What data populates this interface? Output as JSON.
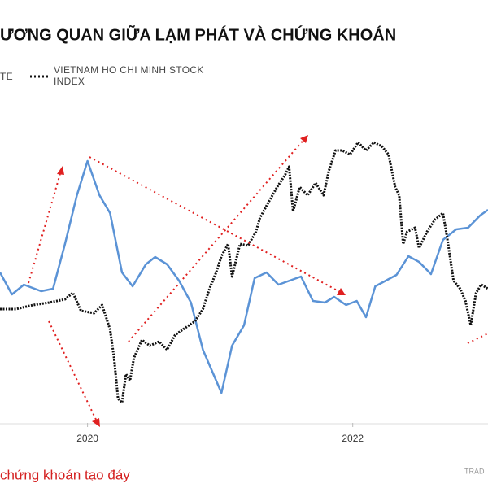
{
  "chart_data": {
    "type": "line",
    "title": "ƯƠNG QUAN GIỮA LẠM PHÁT VÀ CHỨNG KHOÁN",
    "annotations": [
      "chứng khoán tạo đáy",
      "TRAD"
    ],
    "xlim": [
      2019.34,
      2023.02
    ],
    "xticks": [
      2020,
      2022
    ],
    "ylim": [
      0,
      390
    ],
    "series": [
      {
        "name": "TE",
        "color": "#5b93d6",
        "style": "solid",
        "x": [
          2019.34,
          2019.43,
          2019.52,
          2019.65,
          2019.74,
          2019.83,
          2019.92,
          2020.0,
          2020.09,
          2020.17,
          2020.26,
          2020.34,
          2020.44,
          2020.51,
          2020.6,
          2020.69,
          2020.78,
          2020.87,
          2021.01,
          2021.09,
          2021.18,
          2021.26,
          2021.35,
          2021.44,
          2021.61,
          2021.7,
          2021.79,
          2021.86,
          2021.95,
          2022.03,
          2022.1,
          2022.17,
          2022.25,
          2022.33,
          2022.42,
          2022.5,
          2022.59,
          2022.68,
          2022.78,
          2022.87,
          2022.96,
          2023.02
        ],
        "values": [
          185,
          158,
          170,
          162,
          165,
          220,
          280,
          322,
          280,
          258,
          185,
          168,
          195,
          204,
          195,
          175,
          148,
          90,
          37,
          95,
          120,
          178,
          185,
          170,
          180,
          150,
          148,
          155,
          145,
          150,
          130,
          168,
          175,
          182,
          205,
          198,
          183,
          225,
          238,
          240,
          255,
          262
        ]
      },
      {
        "name": "VIETNAM HO CHI MINH STOCK INDEX",
        "color": "#111111",
        "style": "dotted",
        "x": [
          2019.34,
          2019.46,
          2019.59,
          2019.71,
          2019.83,
          2019.89,
          2019.95,
          2020.05,
          2020.11,
          2020.17,
          2020.2,
          2020.23,
          2020.26,
          2020.29,
          2020.32,
          2020.35,
          2020.41,
          2020.47,
          2020.54,
          2020.6,
          2020.66,
          2020.72,
          2020.81,
          2020.87,
          2020.92,
          2020.97,
          2021.01,
          2021.06,
          2021.09,
          2021.12,
          2021.15,
          2021.21,
          2021.27,
          2021.3,
          2021.36,
          2021.43,
          2021.49,
          2021.52,
          2021.55,
          2021.6,
          2021.66,
          2021.72,
          2021.78,
          2021.82,
          2021.87,
          2021.92,
          2021.98,
          2022.04,
          2022.1,
          2022.16,
          2022.22,
          2022.27,
          2022.32,
          2022.35,
          2022.38,
          2022.41,
          2022.47,
          2022.5,
          2022.56,
          2022.62,
          2022.68,
          2022.71,
          2022.76,
          2022.81,
          2022.85,
          2022.89,
          2022.93,
          2022.97,
          2023.02
        ],
        "values": [
          140,
          140,
          145,
          148,
          152,
          160,
          138,
          135,
          145,
          115,
          80,
          30,
          25,
          60,
          52,
          80,
          102,
          95,
          100,
          90,
          108,
          115,
          125,
          140,
          165,
          185,
          205,
          220,
          180,
          200,
          220,
          218,
          235,
          252,
          270,
          290,
          305,
          315,
          260,
          290,
          280,
          295,
          280,
          310,
          335,
          335,
          330,
          345,
          335,
          345,
          340,
          330,
          290,
          280,
          220,
          235,
          240,
          215,
          235,
          250,
          258,
          230,
          175,
          165,
          150,
          120,
          160,
          170,
          165
        ]
      }
    ]
  }
}
